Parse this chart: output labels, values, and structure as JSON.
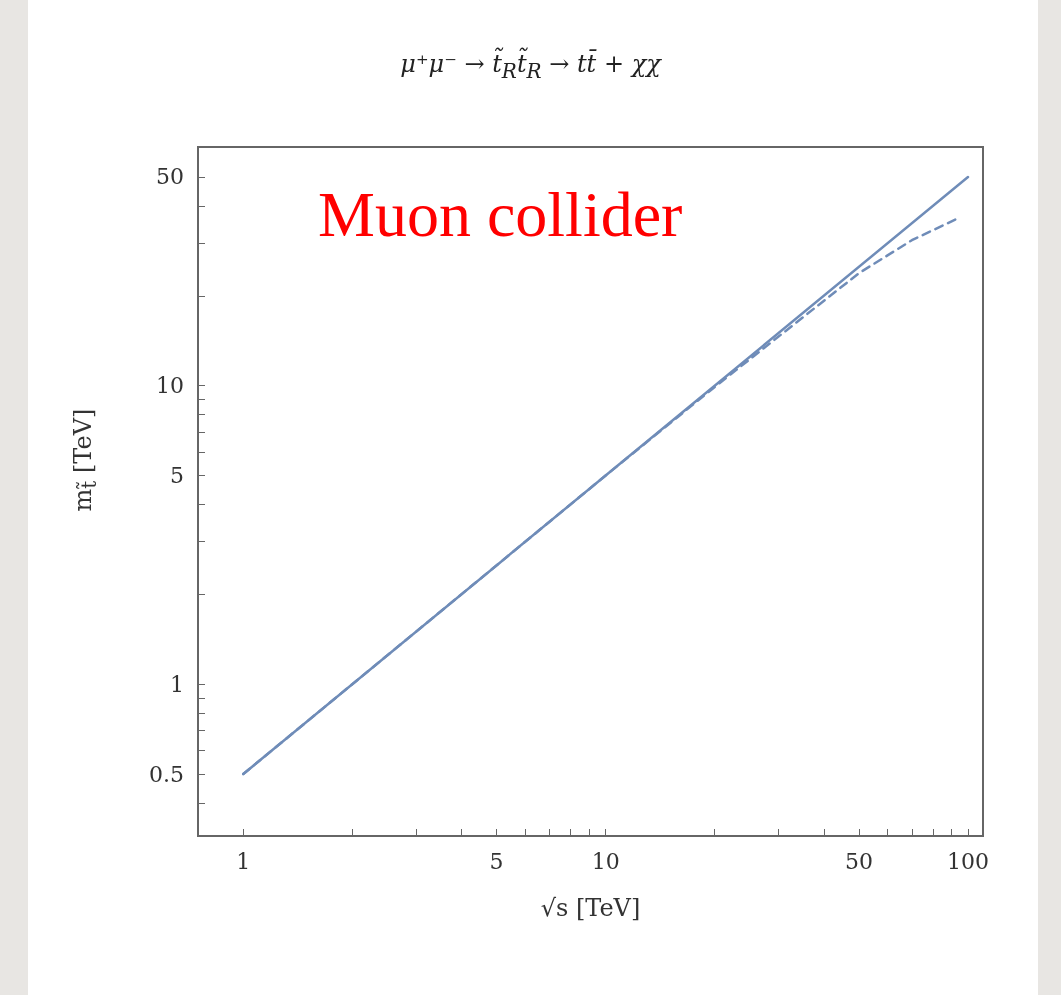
{
  "chart_data": {
    "type": "line",
    "title": "μ⁺μ⁻ → t̃$_{R}$t̃$_{R}$ → tt̄ + χχ",
    "xlabel": "√s [TeV]",
    "ylabel": "m$_{t̃}$ [TeV]",
    "annotations": [
      "Muon collider"
    ],
    "log": "xy",
    "grid": false,
    "marker": "none",
    "xlim": [
      0.75,
      110
    ],
    "ylim": [
      0.31,
      63
    ],
    "xticks": [
      1,
      {
        "value": 2,
        "label": null
      },
      {
        "value": 3,
        "label": null
      },
      {
        "value": 4,
        "label": null
      },
      5,
      {
        "value": 6,
        "label": null
      },
      {
        "value": 7,
        "label": null
      },
      {
        "value": 8,
        "label": null
      },
      {
        "value": 9,
        "label": null
      },
      10,
      {
        "value": 20,
        "label": null
      },
      {
        "value": 30,
        "label": null
      },
      {
        "value": 40,
        "label": null
      },
      50,
      {
        "value": 60,
        "label": null
      },
      {
        "value": 70,
        "label": null
      },
      {
        "value": 80,
        "label": null
      },
      {
        "value": 90,
        "label": null
      },
      100
    ],
    "yticks": [
      {
        "value": 0.4,
        "label": null
      },
      0.5,
      {
        "value": 0.6,
        "label": null
      },
      {
        "value": 0.7,
        "label": null
      },
      {
        "value": 0.8,
        "label": null
      },
      {
        "value": 0.9,
        "label": null
      },
      1,
      {
        "value": 2,
        "label": null
      },
      {
        "value": 3,
        "label": null
      },
      {
        "value": 4,
        "label": null
      },
      5,
      {
        "value": 6,
        "label": null
      },
      {
        "value": 7,
        "label": null
      },
      {
        "value": 8,
        "label": null
      },
      {
        "value": 9,
        "label": null
      },
      10,
      {
        "value": 20,
        "label": null
      },
      {
        "value": 30,
        "label": null
      },
      {
        "value": 40,
        "label": null
      },
      50
    ],
    "series": [
      {
        "color": "#6f8cb8",
        "line_style": "solid",
        "x": [
          1,
          10,
          100
        ],
        "values": [
          0.5,
          5,
          50
        ]
      },
      {
        "color": "#6f8cb8",
        "line_style": "dashed",
        "x": [
          1,
          10,
          20,
          30,
          50,
          70,
          95
        ],
        "values": [
          0.5,
          5,
          9.9,
          14.6,
          23.8,
          30.7,
          36.6
        ]
      }
    ]
  }
}
